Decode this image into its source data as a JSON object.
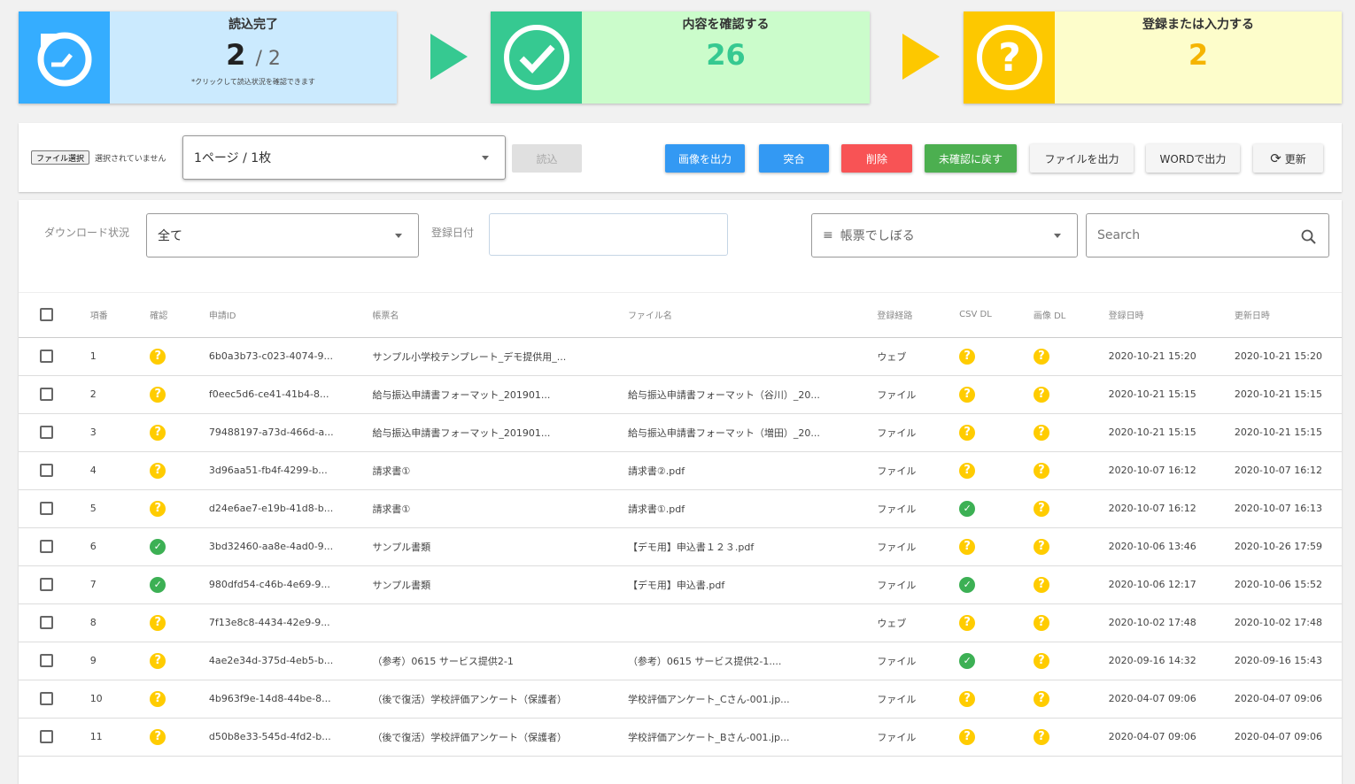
{
  "summary": {
    "loaded": {
      "title": "読込完了",
      "count": "2",
      "total": "/ 2",
      "note": "*クリックして読込状況を確認できます",
      "icon": "timer-refresh-icon",
      "color": "#35adff",
      "bg": "#cbeafe"
    },
    "confirm": {
      "title": "内容を確認する",
      "count": "26",
      "icon": "check-circle-icon",
      "color": "#36c991",
      "bg": "#cbfccb"
    },
    "register": {
      "title": "登録または入力する",
      "count": "2",
      "icon": "question-circle-icon",
      "color": "#fdc800",
      "bg": "#fdfdcb"
    }
  },
  "toolbar": {
    "file_button": "ファイル選択",
    "file_status": "選択されていません",
    "page_select": "1ページ / 1枚",
    "load": "読込",
    "export_image": "画像を出力",
    "match": "突合",
    "delete": "削除",
    "unconfirm": "未確認に戻す",
    "export_file": "ファイルを出力",
    "export_word": "WORDで出力",
    "refresh": "更新"
  },
  "filters": {
    "download_label": "ダウンロード状況",
    "download_value": "全て",
    "date_label": "登録日付",
    "date_value": "",
    "form_filter_placeholder": "帳票でしぼる",
    "search_placeholder": "Search"
  },
  "table": {
    "headers": [
      "項番",
      "確認",
      "申請ID",
      "帳票名",
      "ファイル名",
      "登録経路",
      "CSV DL",
      "画像 DL",
      "登録日時",
      "更新日時"
    ],
    "rows": [
      {
        "no": "1",
        "confirm": "q",
        "id": "6b0a3b73-c023-4074-9...",
        "form": "サンプル小学校テンプレート_デモ提供用_...",
        "file": "",
        "route": "ウェブ",
        "csv": "q",
        "img": "q",
        "created": "2020-10-21 15:20",
        "updated": "2020-10-21 15:20"
      },
      {
        "no": "2",
        "confirm": "q",
        "id": "f0eec5d6-ce41-41b4-8...",
        "form": "給与振込申請書フォーマット_201901...",
        "file": "給与振込申請書フォーマット（谷川）_20...",
        "route": "ファイル",
        "csv": "q",
        "img": "q",
        "created": "2020-10-21 15:15",
        "updated": "2020-10-21 15:15"
      },
      {
        "no": "3",
        "confirm": "q",
        "id": "79488197-a73d-466d-a...",
        "form": "給与振込申請書フォーマット_201901...",
        "file": "給与振込申請書フォーマット（増田）_20...",
        "route": "ファイル",
        "csv": "q",
        "img": "q",
        "created": "2020-10-21 15:15",
        "updated": "2020-10-21 15:15"
      },
      {
        "no": "4",
        "confirm": "q",
        "id": "3d96aa51-fb4f-4299-b...",
        "form": "請求書①",
        "file": "請求書②.pdf",
        "route": "ファイル",
        "csv": "q",
        "img": "q",
        "created": "2020-10-07 16:12",
        "updated": "2020-10-07 16:12"
      },
      {
        "no": "5",
        "confirm": "q",
        "id": "d24e6ae7-e19b-41d8-b...",
        "form": "請求書①",
        "file": "請求書①.pdf",
        "route": "ファイル",
        "csv": "ok",
        "img": "q",
        "created": "2020-10-07 16:12",
        "updated": "2020-10-07 16:13"
      },
      {
        "no": "6",
        "confirm": "ok",
        "id": "3bd32460-aa8e-4ad0-9...",
        "form": "サンプル書類",
        "file": "【デモ用】申込書１２３.pdf",
        "route": "ファイル",
        "csv": "q",
        "img": "q",
        "created": "2020-10-06 13:46",
        "updated": "2020-10-26 17:59"
      },
      {
        "no": "7",
        "confirm": "ok",
        "id": "980dfd54-c46b-4e69-9...",
        "form": "サンプル書類",
        "file": "【デモ用】申込書.pdf",
        "route": "ファイル",
        "csv": "ok",
        "img": "q",
        "created": "2020-10-06 12:17",
        "updated": "2020-10-06 15:52"
      },
      {
        "no": "8",
        "confirm": "q",
        "id": "7f13e8c8-4434-42e9-9...",
        "form": "",
        "file": "",
        "route": "ウェブ",
        "csv": "q",
        "img": "q",
        "created": "2020-10-02 17:48",
        "updated": "2020-10-02 17:48"
      },
      {
        "no": "9",
        "confirm": "q",
        "id": "4ae2e34d-375d-4eb5-b...",
        "form": "（参考）0615 サービス提供2-1",
        "file": "（参考）0615 サービス提供2-1....",
        "route": "ファイル",
        "csv": "ok",
        "img": "q",
        "created": "2020-09-16 14:32",
        "updated": "2020-09-16 15:43"
      },
      {
        "no": "10",
        "confirm": "q",
        "id": "4b963f9e-14d8-44be-8...",
        "form": "（後で復活）学校評価アンケート（保護者）",
        "file": "学校評価アンケート_Cさん-001.jp...",
        "route": "ファイル",
        "csv": "q",
        "img": "q",
        "created": "2020-04-07 09:06",
        "updated": "2020-04-07 09:06"
      },
      {
        "no": "11",
        "confirm": "q",
        "id": "d50b8e33-545d-4fd2-b...",
        "form": "（後で復活）学校評価アンケート（保護者）",
        "file": "学校評価アンケート_Bさん-001.jp...",
        "route": "ファイル",
        "csv": "q",
        "img": "q",
        "created": "2020-04-07 09:06",
        "updated": "2020-04-07 09:06"
      }
    ]
  },
  "colors": {
    "blue": "#3399f3",
    "red": "#f85355",
    "green": "#4caf50",
    "pending": "#ffcc00",
    "done": "#3cb054"
  }
}
